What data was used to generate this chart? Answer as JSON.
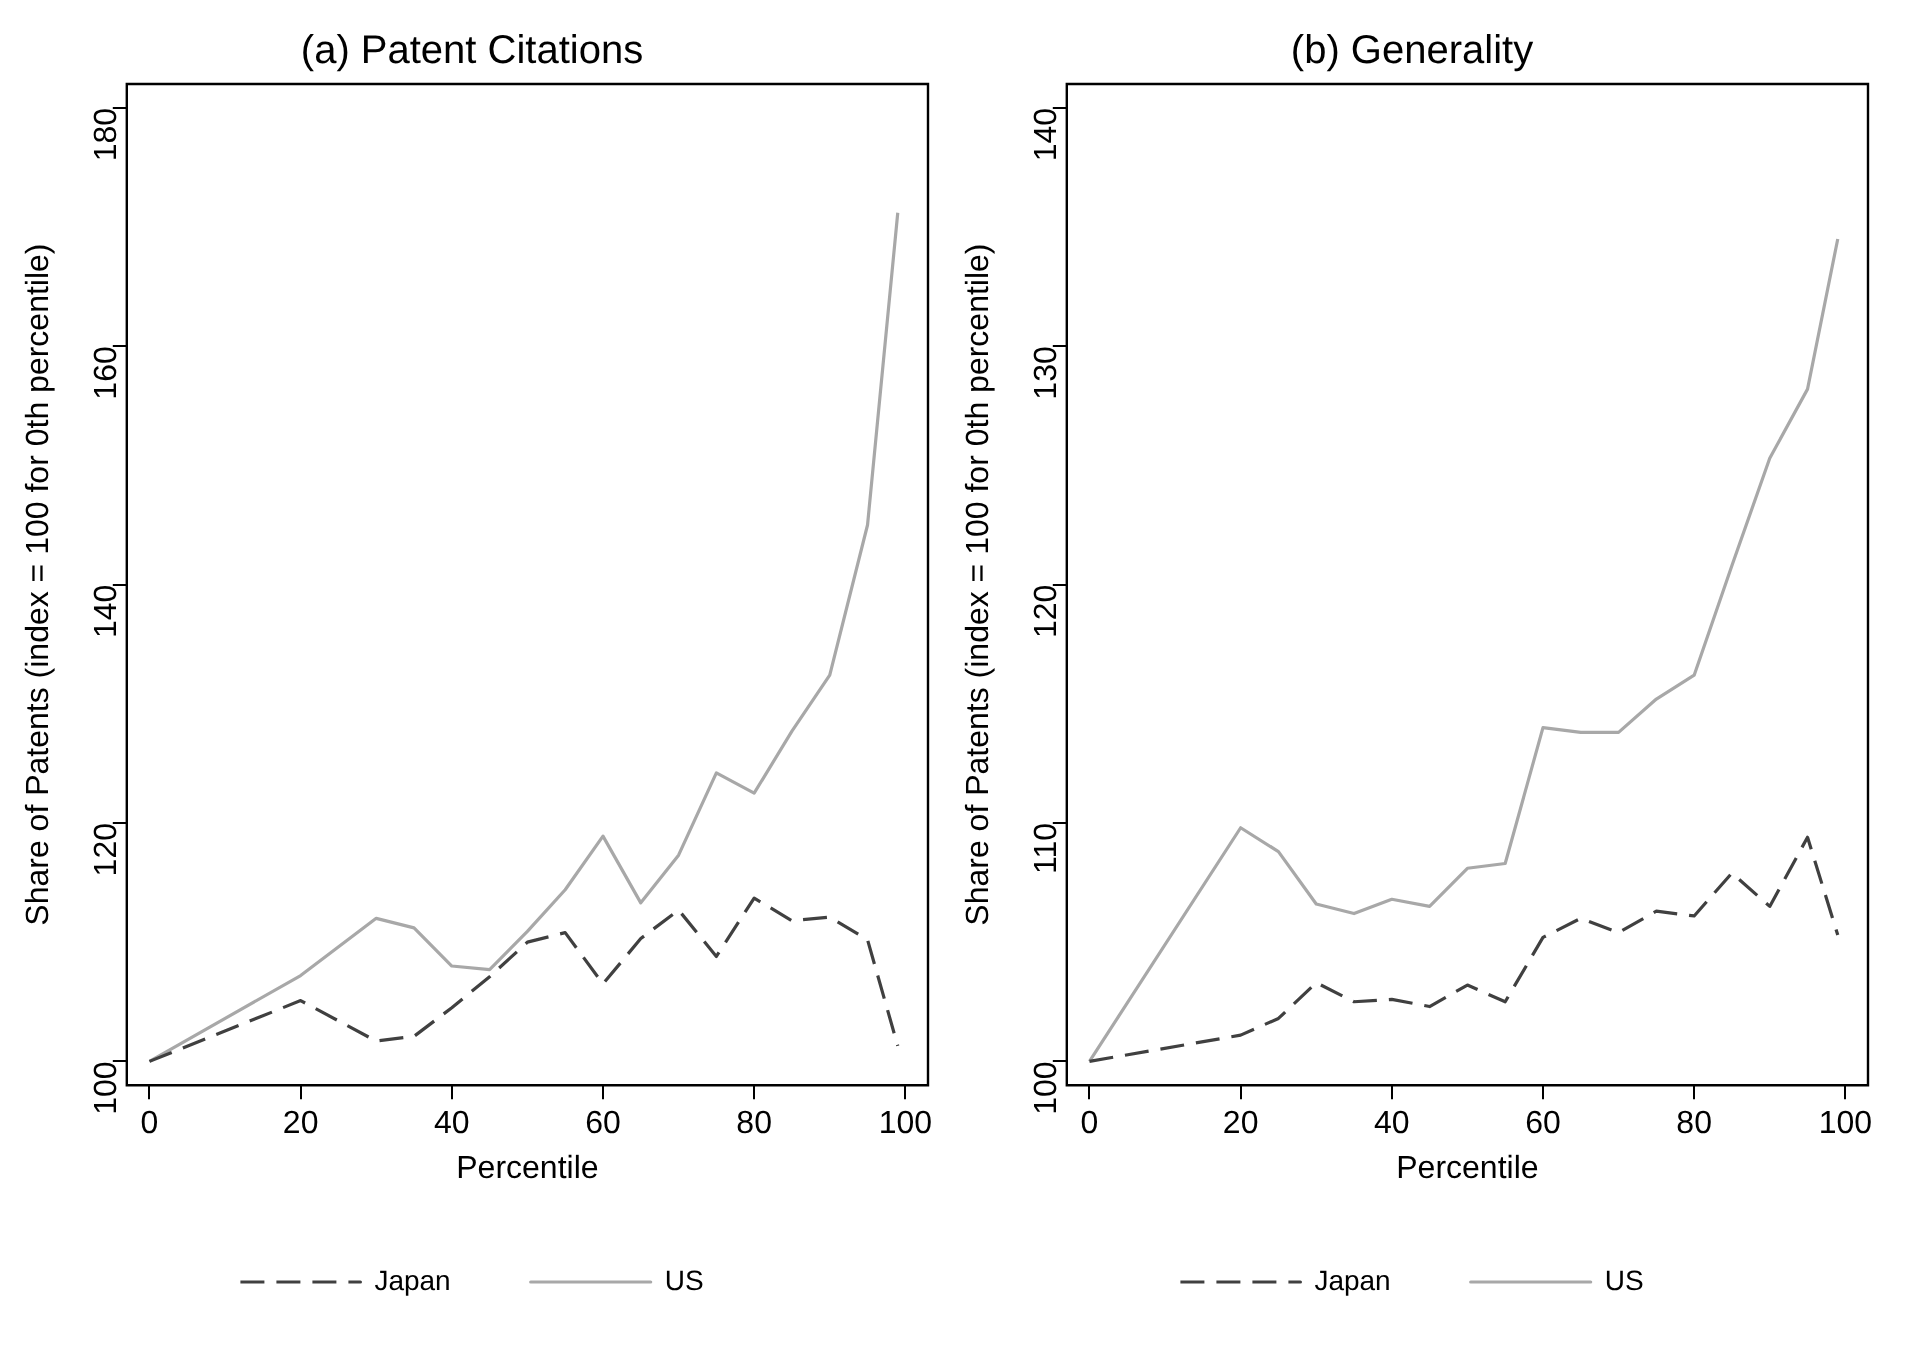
{
  "chart_data": [
    {
      "type": "line",
      "title": "(a) Patent Citations",
      "xlabel": "Percentile",
      "ylabel": "Share of Patents (index = 100 for 0th percentile)",
      "xlim": [
        -3,
        103
      ],
      "xticks": [
        0,
        20,
        40,
        60,
        80,
        100
      ],
      "ylim": [
        98,
        182
      ],
      "yticks": [
        100,
        120,
        140,
        160,
        180
      ],
      "grid": false,
      "legend": "bottom",
      "marker": "none",
      "series": [
        {
          "name": "Japan",
          "color": "#404040",
          "line_style": "dashed",
          "x": [
            0,
            20,
            30,
            35,
            40,
            45,
            50,
            55,
            60,
            65,
            70,
            75,
            80,
            85,
            90,
            95,
            99
          ],
          "values": [
            100,
            105.1,
            101.7,
            102.1,
            104.5,
            107.1,
            110.0,
            110.8,
            106.5,
            110.3,
            112.7,
            108.8,
            113.7,
            111.8,
            112.1,
            110.2,
            101.3
          ]
        },
        {
          "name": "US",
          "color": "#a8a8a8",
          "line_style": "solid",
          "x": [
            0,
            20,
            30,
            35,
            40,
            45,
            50,
            55,
            60,
            65,
            70,
            75,
            80,
            85,
            90,
            95,
            99
          ],
          "values": [
            100,
            107.2,
            112.0,
            111.2,
            108.0,
            107.7,
            110.9,
            114.4,
            118.9,
            113.3,
            117.3,
            124.2,
            122.5,
            127.7,
            132.4,
            145.0,
            171.2
          ]
        }
      ]
    },
    {
      "type": "line",
      "title": "(b) Generality",
      "xlabel": "Percentile",
      "ylabel": "Share of Patents (index = 100 for 0th percentile)",
      "xlim": [
        -3,
        103
      ],
      "xticks": [
        0,
        20,
        40,
        60,
        80,
        100
      ],
      "ylim": [
        99,
        141
      ],
      "yticks": [
        100,
        110,
        120,
        130,
        140
      ],
      "grid": false,
      "legend": "bottom",
      "marker": "none",
      "series": [
        {
          "name": "Japan",
          "color": "#404040",
          "line_style": "dashed",
          "x": [
            0,
            20,
            25,
            30,
            35,
            40,
            45,
            50,
            55,
            60,
            65,
            70,
            75,
            80,
            85,
            90,
            95,
            99
          ],
          "values": [
            100,
            101.1,
            101.8,
            103.3,
            102.5,
            102.6,
            102.3,
            103.2,
            102.5,
            105.2,
            106.0,
            105.4,
            106.3,
            106.1,
            107.9,
            106.5,
            109.4,
            105.3
          ]
        },
        {
          "name": "US",
          "color": "#a8a8a8",
          "line_style": "solid",
          "x": [
            0,
            20,
            25,
            30,
            35,
            40,
            45,
            50,
            55,
            60,
            65,
            70,
            75,
            80,
            85,
            90,
            95,
            99
          ],
          "values": [
            100,
            109.8,
            108.8,
            106.6,
            106.2,
            106.8,
            106.5,
            108.1,
            108.3,
            114.0,
            113.8,
            113.8,
            115.2,
            116.2,
            120.8,
            125.3,
            128.2,
            134.5
          ]
        }
      ]
    }
  ]
}
